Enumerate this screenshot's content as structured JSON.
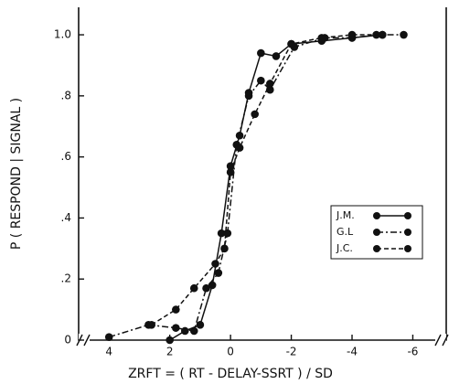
{
  "chart_data": {
    "type": "line",
    "x_label": "ZRFT = ( RT - DELAY-SSRT ) / SD",
    "y_label": "P ( RESPOND | SIGNAL )",
    "xlim": [
      5,
      -7.1
    ],
    "ylim": [
      0,
      1.09
    ],
    "xticks": [
      4,
      2,
      0,
      -2,
      -4,
      -6
    ],
    "yticks": [
      0,
      {
        "value": 0.2,
        "label": ".2"
      },
      {
        "value": 0.4,
        "label": ".4"
      },
      {
        "value": 0.6,
        "label": ".6"
      },
      {
        "value": 0.8,
        "label": ".8"
      },
      {
        "value": 1.0,
        "label": "1.0"
      }
    ],
    "legend": "right",
    "series": [
      {
        "name": "J.M.",
        "color": "#111111",
        "dash": "solid",
        "x": [
          2.0,
          1.5,
          1.0,
          0.6,
          0.3,
          0,
          -0.3,
          -0.6,
          -1.0,
          -1.5,
          -2.0,
          -3.0,
          -4.0,
          -5.0
        ],
        "values": [
          0.0,
          0.03,
          0.05,
          0.18,
          0.35,
          0.57,
          0.67,
          0.81,
          0.94,
          0.93,
          0.97,
          0.98,
          0.99,
          1.0
        ]
      },
      {
        "name": "G.L",
        "color": "#111111",
        "dash": "dashdot",
        "x": [
          4.0,
          2.7,
          1.8,
          1.2,
          0.8,
          0.4,
          0.1,
          -0.2,
          -0.6,
          -1.0,
          -1.3,
          -2.1,
          -3.1,
          -4.0,
          -4.8,
          -5.7
        ],
        "values": [
          0.01,
          0.05,
          0.04,
          0.03,
          0.17,
          0.22,
          0.35,
          0.64,
          0.8,
          0.85,
          0.82,
          0.96,
          0.99,
          0.99,
          1.0,
          1.0
        ]
      },
      {
        "name": "J.C.",
        "color": "#111111",
        "dash": "dashed",
        "x": [
          2.6,
          1.8,
          1.2,
          0.5,
          0.2,
          0,
          -0.3,
          -0.8,
          -1.3,
          -2.0,
          -3.0,
          -4.0,
          -5.0
        ],
        "values": [
          0.05,
          0.1,
          0.17,
          0.25,
          0.3,
          0.55,
          0.63,
          0.74,
          0.84,
          0.97,
          0.99,
          1.0,
          1.0
        ]
      }
    ]
  }
}
